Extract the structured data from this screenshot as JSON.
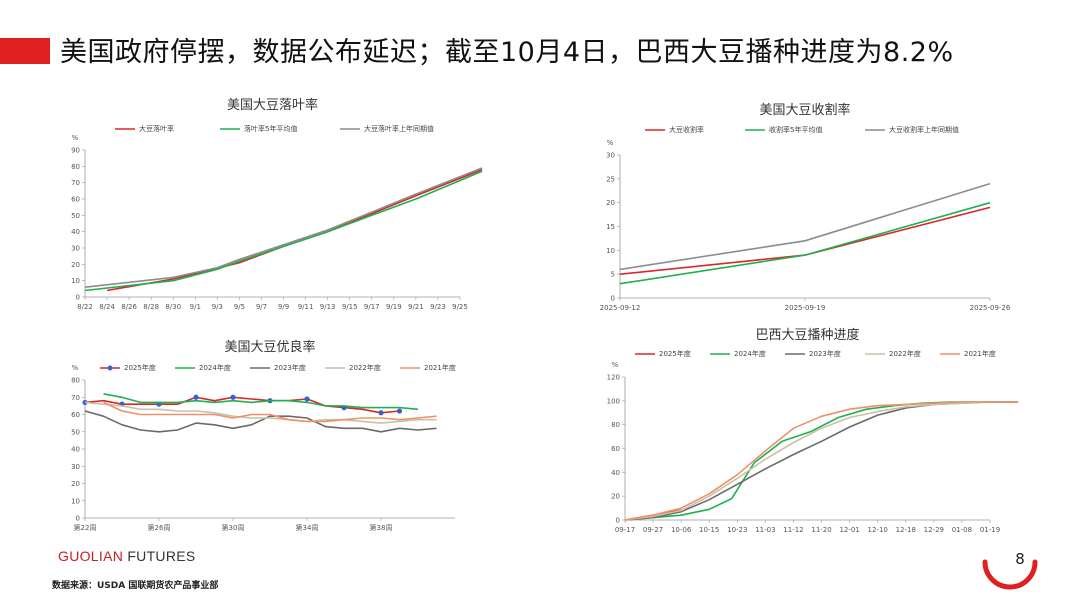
{
  "header": {
    "title": "美国政府停摆，数据公布延迟；截至10月4日，巴西大豆播种进度为8.2%"
  },
  "footer": {
    "brand_main": "GUOLIAN",
    "brand_sub": " FUTURES",
    "source": "数据来源：USDA 国联期货农产品事业部",
    "page": "8"
  },
  "colors": {
    "accent": "#e02020",
    "red": "#d9262b",
    "green": "#1fb050",
    "gray": "#8c8c8c",
    "darkgray": "#6a6a6a",
    "lightgray": "#c9c0a8",
    "salmon": "#f0906a",
    "blue": "#3a5fd0"
  },
  "chart_data": [
    {
      "id": "leafdrop",
      "type": "line",
      "title": "美国大豆落叶率",
      "unit": "%",
      "categories": [
        "8/22",
        "8/24",
        "8/26",
        "8/28",
        "8/30",
        "9/1",
        "9/3",
        "9/5",
        "9/7",
        "9/9",
        "9/11",
        "9/13",
        "9/15",
        "9/17",
        "9/19",
        "9/21",
        "9/23",
        "9/25"
      ],
      "ylim": [
        0,
        90
      ],
      "yticks": [
        0,
        10,
        20,
        30,
        40,
        50,
        60,
        70,
        80,
        90
      ],
      "series": [
        {
          "name": "大豆落叶率",
          "color": "#d9262b",
          "points": [
            [
              1,
              4
            ],
            [
              4,
              11
            ],
            [
              7,
              21
            ],
            [
              9,
              31
            ],
            [
              11,
              40
            ],
            [
              13,
              51
            ],
            [
              15,
              62
            ],
            [
              18,
              78
            ]
          ]
        },
        {
          "name": "落叶率5年平均值",
          "color": "#1fb050",
          "points": [
            [
              0,
              4
            ],
            [
              2,
              7
            ],
            [
              4,
              10
            ],
            [
              6,
              17
            ],
            [
              7,
              22
            ],
            [
              9,
              31
            ],
            [
              11,
              40
            ],
            [
              13,
              50
            ],
            [
              15,
              60
            ],
            [
              18,
              77
            ]
          ]
        },
        {
          "name": "大豆落叶率上年同期值",
          "color": "#8c8c8c",
          "points": [
            [
              0,
              6
            ],
            [
              2,
              9
            ],
            [
              4,
              12
            ],
            [
              6,
              18
            ],
            [
              7,
              23
            ],
            [
              9,
              32
            ],
            [
              11,
              41
            ],
            [
              13,
              52
            ],
            [
              15,
              63
            ],
            [
              18,
              79
            ]
          ]
        }
      ]
    },
    {
      "id": "harvest",
      "type": "line",
      "title": "美国大豆收割率",
      "unit": "%",
      "categories": [
        "2025-09-12",
        "2025-09-19",
        "2025-09-26"
      ],
      "ylim": [
        0,
        30
      ],
      "yticks": [
        0,
        5,
        10,
        15,
        20,
        25,
        30
      ],
      "series": [
        {
          "name": "大豆收割率",
          "color": "#d9262b",
          "points": [
            [
              0,
              5
            ],
            [
              1,
              9
            ],
            [
              2,
              19
            ]
          ]
        },
        {
          "name": "收割率5年平均值",
          "color": "#1fb050",
          "points": [
            [
              0,
              3
            ],
            [
              1,
              9
            ],
            [
              2,
              20
            ]
          ]
        },
        {
          "name": "大豆收割率上年同期值",
          "color": "#8c8c8c",
          "points": [
            [
              0,
              6
            ],
            [
              1,
              12
            ],
            [
              2,
              24
            ]
          ]
        }
      ]
    },
    {
      "id": "condition",
      "type": "line",
      "title": "美国大豆优良率",
      "unit": "%",
      "xtick_labels": [
        {
          "i": 0,
          "label": "第22周"
        },
        {
          "i": 4,
          "label": "第26周"
        },
        {
          "i": 8,
          "label": "第30周"
        },
        {
          "i": 12,
          "label": "第34周"
        },
        {
          "i": 16,
          "label": "第38周"
        }
      ],
      "x_count": 21,
      "ylim": [
        0,
        80
      ],
      "yticks": [
        0,
        10,
        20,
        30,
        40,
        50,
        60,
        70,
        80
      ],
      "series": [
        {
          "name": "2025年度",
          "color": "#d9262b",
          "marker": "#3a5fd0",
          "points": [
            [
              0,
              67
            ],
            [
              1,
              68
            ],
            [
              2,
              66
            ],
            [
              3,
              66
            ],
            [
              4,
              66
            ],
            [
              5,
              66
            ],
            [
              6,
              70
            ],
            [
              7,
              68
            ],
            [
              8,
              70
            ],
            [
              9,
              69
            ],
            [
              10,
              68
            ],
            [
              11,
              68
            ],
            [
              12,
              69
            ],
            [
              13,
              65
            ],
            [
              14,
              64
            ],
            [
              15,
              63
            ],
            [
              16,
              61
            ],
            [
              17,
              62
            ]
          ]
        },
        {
          "name": "2024年度",
          "color": "#1fb050",
          "points": [
            [
              1,
              72
            ],
            [
              2,
              70
            ],
            [
              3,
              67
            ],
            [
              4,
              67
            ],
            [
              5,
              67
            ],
            [
              6,
              68
            ],
            [
              7,
              67
            ],
            [
              8,
              68
            ],
            [
              9,
              67
            ],
            [
              10,
              68
            ],
            [
              11,
              68
            ],
            [
              12,
              67
            ],
            [
              13,
              65
            ],
            [
              14,
              65
            ],
            [
              15,
              64
            ],
            [
              16,
              64
            ],
            [
              17,
              64
            ],
            [
              18,
              63
            ]
          ]
        },
        {
          "name": "2023年度",
          "color": "#6a6a6a",
          "points": [
            [
              0,
              62
            ],
            [
              1,
              59
            ],
            [
              2,
              54
            ],
            [
              3,
              51
            ],
            [
              4,
              50
            ],
            [
              5,
              51
            ],
            [
              6,
              55
            ],
            [
              7,
              54
            ],
            [
              8,
              52
            ],
            [
              9,
              54
            ],
            [
              10,
              59
            ],
            [
              11,
              59
            ],
            [
              12,
              58
            ],
            [
              13,
              53
            ],
            [
              14,
              52
            ],
            [
              15,
              52
            ],
            [
              16,
              50
            ],
            [
              17,
              52
            ],
            [
              18,
              51
            ],
            [
              19,
              52
            ]
          ]
        },
        {
          "name": "2022年度",
          "color": "#c9c0a8",
          "points": [
            [
              0,
              67
            ],
            [
              1,
              66
            ],
            [
              2,
              65
            ],
            [
              3,
              63
            ],
            [
              4,
              63
            ],
            [
              5,
              62
            ],
            [
              6,
              62
            ],
            [
              7,
              61
            ],
            [
              8,
              59
            ],
            [
              9,
              58
            ],
            [
              10,
              58
            ],
            [
              11,
              57
            ],
            [
              12,
              56
            ],
            [
              13,
              57
            ],
            [
              14,
              57
            ],
            [
              15,
              56
            ],
            [
              16,
              55
            ],
            [
              17,
              56
            ],
            [
              18,
              57
            ],
            [
              19,
              57
            ]
          ]
        },
        {
          "name": "2021年度",
          "color": "#f0906a",
          "points": [
            [
              1,
              67
            ],
            [
              2,
              62
            ],
            [
              3,
              60
            ],
            [
              4,
              60
            ],
            [
              5,
              60
            ],
            [
              6,
              60
            ],
            [
              7,
              60
            ],
            [
              8,
              58
            ],
            [
              9,
              60
            ],
            [
              10,
              60
            ],
            [
              11,
              57
            ],
            [
              12,
              56
            ],
            [
              13,
              56
            ],
            [
              14,
              57
            ],
            [
              15,
              58
            ],
            [
              16,
              58
            ],
            [
              17,
              57
            ],
            [
              18,
              58
            ],
            [
              19,
              59
            ]
          ]
        }
      ]
    },
    {
      "id": "brazil",
      "type": "line",
      "title": "巴西大豆播种进度",
      "unit": "%",
      "categories": [
        "09-17",
        "09-27",
        "10-06",
        "10-15",
        "10-23",
        "11-03",
        "11-12",
        "11-20",
        "12-01",
        "12-10",
        "12-18",
        "12-29",
        "01-08",
        "01-19"
      ],
      "ylim": [
        0,
        120
      ],
      "yticks": [
        0,
        20,
        40,
        60,
        80,
        100,
        120
      ],
      "series": [
        {
          "name": "2025年度",
          "color": "#d9262b",
          "points": [
            [
              0,
              0
            ],
            [
              2,
              8.2
            ]
          ]
        },
        {
          "name": "2024年度",
          "color": "#1fb050",
          "points": [
            [
              0,
              0
            ],
            [
              1,
              2
            ],
            [
              2,
              4
            ],
            [
              3,
              9
            ],
            [
              3.8,
              18
            ],
            [
              4.6,
              48
            ],
            [
              5.6,
              66
            ],
            [
              6.6,
              74
            ],
            [
              7.6,
              86
            ],
            [
              8.6,
              93
            ],
            [
              9.6,
              96
            ],
            [
              10.6,
              98
            ],
            [
              11.6,
              99
            ],
            [
              12.6,
              99
            ],
            [
              14,
              99
            ]
          ]
        },
        {
          "name": "2023年度",
          "color": "#6a6a6a",
          "points": [
            [
              0,
              0
            ],
            [
              1,
              2
            ],
            [
              2,
              7
            ],
            [
              3,
              17
            ],
            [
              4,
              30
            ],
            [
              5,
              43
            ],
            [
              6,
              55
            ],
            [
              7,
              66
            ],
            [
              8,
              78
            ],
            [
              9,
              88
            ],
            [
              10,
              94
            ],
            [
              11,
              97
            ],
            [
              12,
              98
            ],
            [
              13,
              99
            ],
            [
              14,
              99
            ]
          ]
        },
        {
          "name": "2022年度",
          "color": "#c9c0a8",
          "points": [
            [
              0,
              0
            ],
            [
              1,
              3
            ],
            [
              2,
              8
            ],
            [
              3,
              20
            ],
            [
              4,
              35
            ],
            [
              5,
              51
            ],
            [
              6,
              65
            ],
            [
              7,
              77
            ],
            [
              8,
              86
            ],
            [
              9,
              91
            ],
            [
              10,
              95
            ],
            [
              11,
              97
            ],
            [
              12,
              98
            ],
            [
              13,
              99
            ],
            [
              14,
              99
            ]
          ]
        },
        {
          "name": "2021年度",
          "color": "#f0906a",
          "points": [
            [
              0,
              0
            ],
            [
              1,
              4
            ],
            [
              2,
              10
            ],
            [
              3,
              22
            ],
            [
              4,
              38
            ],
            [
              5,
              58
            ],
            [
              6,
              77
            ],
            [
              7,
              87
            ],
            [
              8,
              93
            ],
            [
              9,
              96
            ],
            [
              10,
              97
            ],
            [
              11,
              98
            ],
            [
              12,
              99
            ],
            [
              13,
              99
            ],
            [
              14,
              99
            ]
          ]
        }
      ]
    }
  ]
}
